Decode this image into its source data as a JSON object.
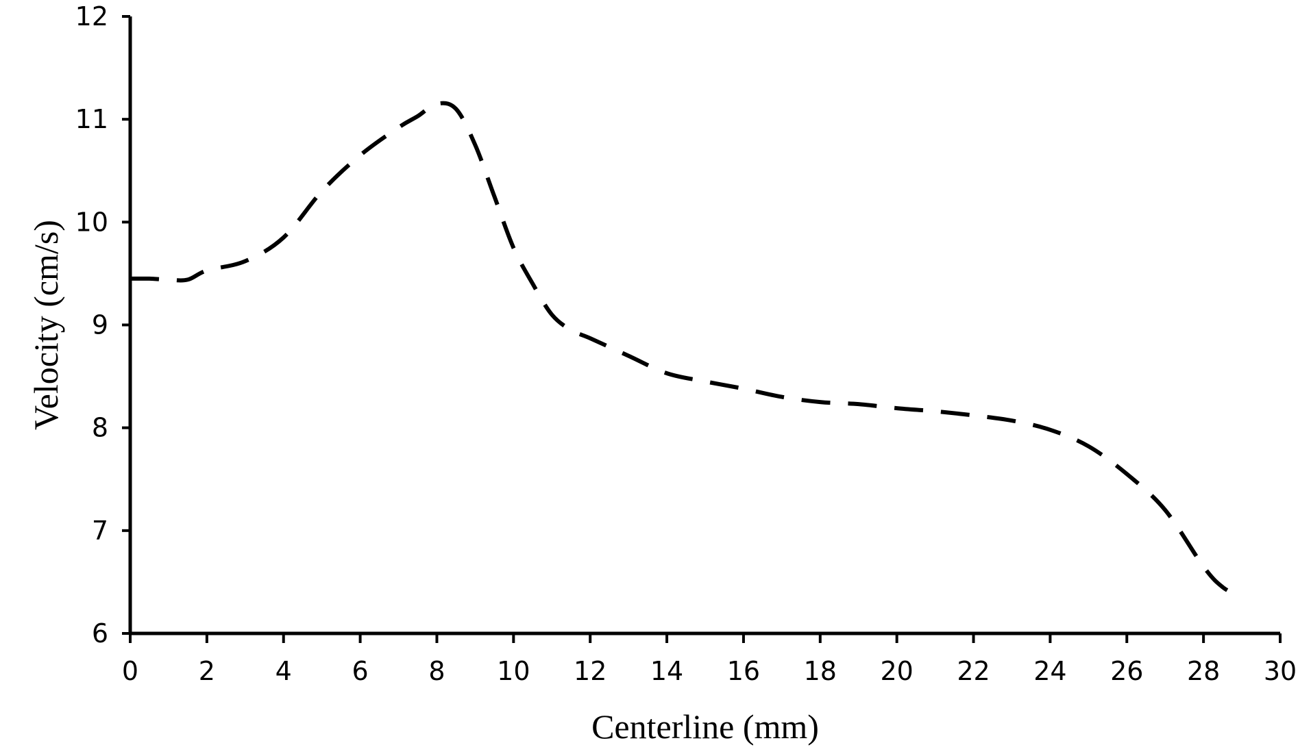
{
  "chart_data": {
    "type": "line",
    "title": "",
    "xlabel": "Centerline (mm)",
    "ylabel": "Velocity (cm/s)",
    "xlim": [
      0,
      30
    ],
    "ylim": [
      6,
      12
    ],
    "xticks": [
      0,
      2,
      4,
      6,
      8,
      10,
      12,
      14,
      16,
      18,
      20,
      22,
      24,
      26,
      28,
      30
    ],
    "yticks": [
      6,
      7,
      8,
      9,
      10,
      11,
      12
    ],
    "grid": false,
    "legend": "none",
    "line_style": "dashed",
    "line_color": "#000000",
    "series": [
      {
        "x": [
          0,
          0.5,
          1,
          1.5,
          2,
          3,
          4,
          5,
          6,
          7,
          7.5,
          8,
          8.5,
          9,
          9.5,
          10,
          10.5,
          11,
          11.5,
          12,
          13,
          14,
          15,
          16,
          17,
          18,
          19,
          20,
          21,
          22,
          23,
          24,
          25,
          26,
          27,
          28,
          28.5,
          29
        ],
        "y": [
          9.45,
          9.45,
          9.44,
          9.44,
          9.53,
          9.62,
          9.85,
          10.3,
          10.65,
          10.92,
          11.03,
          11.15,
          11.1,
          10.75,
          10.25,
          9.75,
          9.4,
          9.1,
          8.95,
          8.87,
          8.7,
          8.53,
          8.45,
          8.38,
          8.3,
          8.25,
          8.23,
          8.19,
          8.16,
          8.12,
          8.07,
          7.98,
          7.82,
          7.55,
          7.2,
          6.65,
          6.45,
          6.35
        ]
      }
    ]
  }
}
